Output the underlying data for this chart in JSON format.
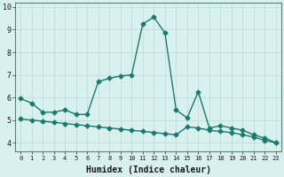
{
  "xlabel": "Humidex (Indice chaleur)",
  "ylabel": "",
  "background_color": "#d8f0ee",
  "grid_color": "#c0deda",
  "line_color": "#1a7a6e",
  "x_data1": [
    0,
    1,
    2,
    3,
    4,
    5,
    6,
    7,
    8,
    9,
    10,
    11,
    12,
    13,
    14,
    15,
    16,
    17,
    18,
    19,
    20,
    21,
    22,
    23
  ],
  "y_data1": [
    5.95,
    5.75,
    5.35,
    5.35,
    5.45,
    5.25,
    5.25,
    6.7,
    6.85,
    6.95,
    7.0,
    9.25,
    9.55,
    8.85,
    5.45,
    5.1,
    6.25,
    4.65,
    4.75,
    4.65,
    4.55,
    4.35,
    4.2,
    4.0
  ],
  "x_data2": [
    0,
    1,
    2,
    3,
    4,
    5,
    6,
    7,
    8,
    9,
    10,
    11,
    12,
    13,
    14,
    15,
    16,
    17,
    18,
    19,
    20,
    21,
    22,
    23
  ],
  "y_data2": [
    5.05,
    5.0,
    4.95,
    4.9,
    4.85,
    4.8,
    4.75,
    4.7,
    4.65,
    4.6,
    4.55,
    4.5,
    4.45,
    4.4,
    4.35,
    4.7,
    4.65,
    4.55,
    4.5,
    4.45,
    4.35,
    4.25,
    4.1,
    4.0
  ],
  "ylim": [
    3.6,
    10.2
  ],
  "xlim": [
    -0.5,
    23.5
  ],
  "yticks": [
    4,
    5,
    6,
    7,
    8,
    9,
    10
  ],
  "xticks": [
    0,
    1,
    2,
    3,
    4,
    5,
    6,
    7,
    8,
    9,
    10,
    11,
    12,
    13,
    14,
    15,
    16,
    17,
    18,
    19,
    20,
    21,
    22,
    23
  ],
  "marker": "D",
  "markersize": 2.5,
  "linewidth": 1.0
}
